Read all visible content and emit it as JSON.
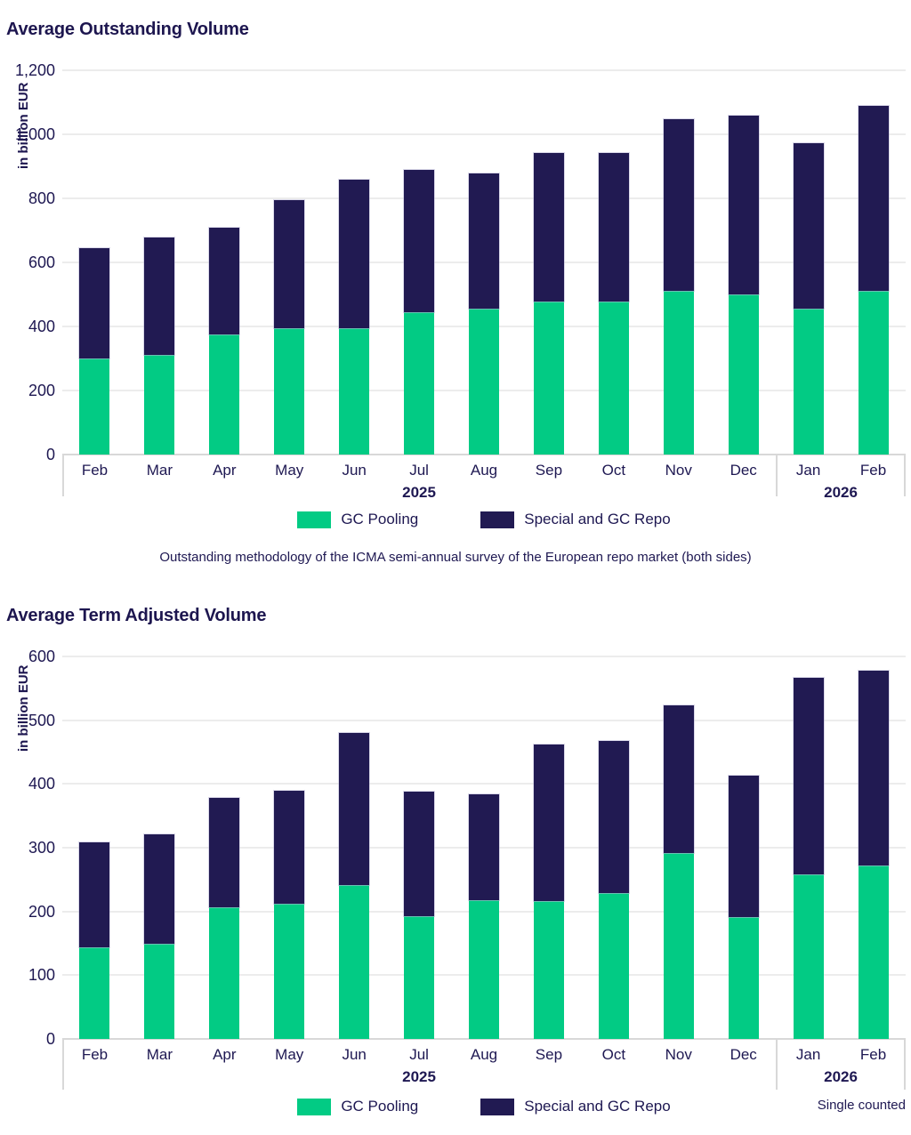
{
  "colors": {
    "gc_pooling": "#02CB84",
    "special_repo": "#211A52",
    "text": "#1E1852",
    "grid": "#ECECEC",
    "axis": "#D8D8D8"
  },
  "chart_data": [
    {
      "type": "bar",
      "stacked": true,
      "title": "Average Outstanding Volume",
      "ylabel": "in billion EUR",
      "unit": "billion EUR",
      "ylim": [
        0,
        1200
      ],
      "ytick_step": 200,
      "grid": true,
      "legend_position": "bottom-center",
      "categories": [
        "Feb",
        "Mar",
        "Apr",
        "May",
        "Jun",
        "Jul",
        "Aug",
        "Sep",
        "Oct",
        "Nov",
        "Dec",
        "Jan",
        "Feb"
      ],
      "year_groups": [
        {
          "label": "2025",
          "from": 0,
          "to": 10
        },
        {
          "label": "2026",
          "from": 11,
          "to": 12
        }
      ],
      "series": [
        {
          "name": "GC Pooling",
          "color_key": "gc_pooling",
          "values": [
            300,
            310,
            376,
            394,
            394,
            445,
            456,
            478,
            478,
            511,
            499,
            456,
            511
          ]
        },
        {
          "name": "Special and GC Repo",
          "color_key": "special_repo",
          "values": [
            345,
            368,
            334,
            400,
            463,
            444,
            422,
            463,
            463,
            536,
            557,
            516,
            578
          ]
        }
      ],
      "totals": [
        645,
        678,
        710,
        794,
        857,
        889,
        878,
        941,
        941,
        1047,
        1056,
        972,
        1089
      ],
      "footnote": "Outstanding methodology of the ICMA semi-annual survey of the European repo market (both sides)"
    },
    {
      "type": "bar",
      "stacked": true,
      "title": "Average Term Adjusted Volume",
      "ylabel": "in billion EUR",
      "unit": "billion EUR",
      "ylim": [
        0,
        600
      ],
      "ytick_step": 100,
      "grid": true,
      "legend_position": "bottom-center",
      "categories": [
        "Feb",
        "Mar",
        "Apr",
        "May",
        "Jun",
        "Jul",
        "Aug",
        "Sep",
        "Oct",
        "Nov",
        "Dec",
        "Jan",
        "Feb"
      ],
      "year_groups": [
        {
          "label": "2025",
          "from": 0,
          "to": 10
        },
        {
          "label": "2026",
          "from": 11,
          "to": 12
        }
      ],
      "series": [
        {
          "name": "GC Pooling",
          "color_key": "gc_pooling",
          "values": [
            144,
            149,
            206,
            212,
            242,
            193,
            217,
            216,
            229,
            291,
            191,
            258,
            272
          ]
        },
        {
          "name": "Special and GC Repo",
          "color_key": "special_repo",
          "values": [
            165,
            172,
            171,
            177,
            239,
            196,
            166,
            246,
            238,
            232,
            222,
            308,
            306
          ]
        }
      ],
      "totals": [
        309,
        321,
        377,
        389,
        481,
        389,
        383,
        462,
        467,
        523,
        413,
        566,
        578
      ],
      "note_right": "Single counted"
    }
  ]
}
